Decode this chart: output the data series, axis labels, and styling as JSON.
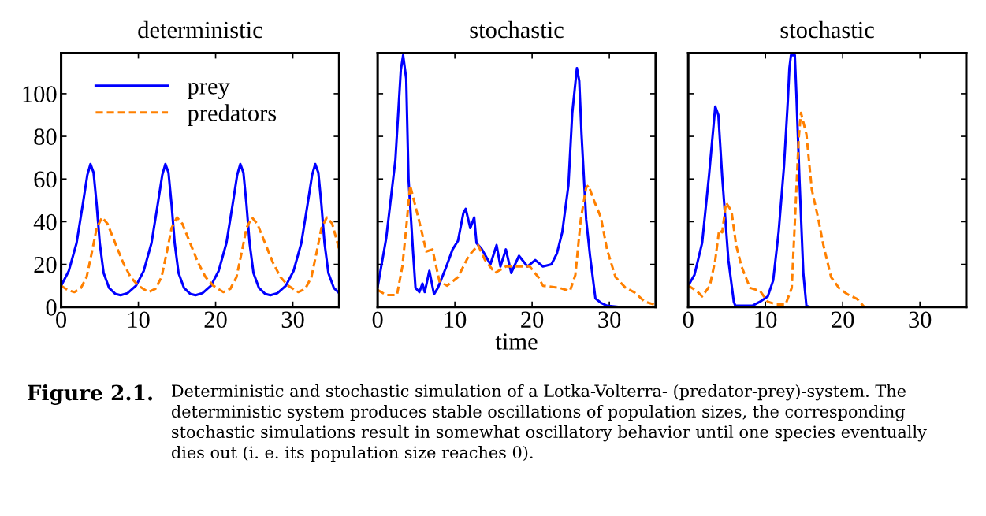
{
  "chart_data": [
    {
      "type": "line",
      "title": "deterministic",
      "xlim": [
        0,
        36
      ],
      "ylim": [
        0,
        119
      ],
      "xticks": [
        0,
        10,
        20,
        30
      ],
      "yticks": [
        0,
        20,
        40,
        60,
        80,
        100
      ],
      "legend": "top",
      "grid": false,
      "annotations": [
        "Figure 2.1.",
        "Deterministic and stochastic simulation of a Lotka-Volterra- (predator-prey)-system. The deterministic system produces stable oscillations of population sizes, the corresponding stochastic simulations result in somewhat oscillatory behavior until one species eventually dies out (i. e. its population size reaches 0)."
      ],
      "series": [
        {
          "name": "prey",
          "color": "#0000ff",
          "line_style": "solid",
          "x": [
            0,
            1,
            2,
            2.8,
            3.4,
            3.8,
            4.2,
            4.6,
            5.0,
            5.5,
            6.2,
            7.0,
            7.7,
            8.6,
            9.7,
            10.7,
            11.7,
            12.5,
            13.1,
            13.5,
            13.9,
            14.3,
            14.7,
            15.2,
            15.9,
            16.7,
            17.4,
            18.3,
            19.4,
            20.4,
            21.4,
            22.2,
            22.8,
            23.2,
            23.6,
            24.0,
            24.4,
            24.9,
            25.6,
            26.4,
            27.1,
            28.0,
            29.1,
            30.1,
            31.1,
            31.9,
            32.5,
            32.9,
            33.3,
            33.7,
            34.1,
            34.6,
            35.3,
            36
          ],
          "values": [
            10,
            17,
            30,
            48,
            62,
            67,
            63,
            48,
            30,
            16,
            9,
            6.2,
            5.5,
            6.5,
            10,
            17,
            30,
            48,
            62,
            67,
            63,
            48,
            30,
            16,
            9,
            6.2,
            5.5,
            6.5,
            10,
            17,
            30,
            48,
            62,
            67,
            63,
            48,
            30,
            16,
            9,
            6.2,
            5.5,
            6.5,
            10,
            17,
            30,
            48,
            62,
            67,
            63,
            48,
            30,
            16,
            9,
            6.5
          ]
        },
        {
          "name": "predators",
          "color": "#ff8000",
          "line_style": "dashed",
          "x": [
            0,
            0.8,
            1.7,
            2.5,
            3.3,
            4.0,
            4.6,
            5.3,
            6.0,
            7.0,
            8.0,
            9.0,
            10.0,
            11.3,
            12.2,
            13.0,
            13.7,
            14.3,
            15.0,
            15.7,
            16.7,
            17.7,
            18.7,
            19.7,
            21.0,
            21.9,
            22.7,
            23.4,
            24.0,
            24.7,
            25.4,
            26.4,
            27.4,
            28.4,
            29.4,
            30.7,
            31.6,
            32.4,
            33.1,
            33.7,
            34.4,
            35.1,
            36
          ],
          "values": [
            10,
            8,
            7,
            8.5,
            14,
            26,
            37,
            42,
            39,
            30,
            21,
            14,
            10,
            7,
            8.5,
            14,
            26,
            37,
            42,
            39,
            30,
            21,
            14,
            10,
            7,
            8.5,
            14,
            26,
            37,
            42,
            39,
            30,
            21,
            14,
            10,
            7,
            8.5,
            14,
            26,
            37,
            42,
            39,
            27
          ]
        }
      ]
    },
    {
      "type": "line",
      "title": "stochastic",
      "xlabel": "time",
      "xlim": [
        0,
        36
      ],
      "ylim": [
        0,
        119
      ],
      "xticks": [
        0,
        10,
        20,
        30
      ],
      "yticks": [
        {
          "value": 0,
          "label": null
        },
        {
          "value": 20,
          "label": null
        },
        {
          "value": 40,
          "label": null
        },
        {
          "value": 60,
          "label": null
        },
        {
          "value": 80,
          "label": null
        },
        {
          "value": 100,
          "label": null
        }
      ],
      "tick_labels": "x",
      "grid": false,
      "series": [
        {
          "color": "#0000ff",
          "line_style": "solid",
          "x": [
            0,
            1.1,
            2.3,
            3.0,
            3.3,
            3.7,
            4.0,
            4.6,
            4.9,
            5.4,
            5.8,
            6.1,
            6.7,
            7.3,
            7.8,
            8.9,
            9.7,
            10.4,
            11.1,
            11.4,
            12.0,
            12.5,
            12.8,
            13.5,
            14.6,
            15.4,
            15.9,
            16.6,
            17.3,
            18.3,
            19.4,
            20.4,
            21.4,
            22.5,
            23.2,
            23.9,
            24.7,
            25.2,
            25.8,
            26.1,
            26.4,
            27.0,
            27.5,
            28.2,
            28.9,
            29.7,
            31.4,
            36
          ],
          "values": [
            9.4,
            32,
            69,
            111,
            118,
            107,
            60,
            25,
            9,
            7,
            11,
            7,
            17,
            6,
            9,
            19,
            27,
            31,
            44,
            46,
            37,
            42,
            30,
            27,
            20,
            29,
            19,
            27,
            16,
            24,
            19,
            22,
            19,
            20,
            25,
            35,
            57,
            91,
            112,
            106,
            81,
            41,
            24,
            4,
            2,
            0.6,
            0,
            0
          ]
        },
        {
          "color": "#ff8000",
          "line_style": "dashed",
          "x": [
            0,
            1.1,
            2.5,
            3.2,
            3.7,
            4.2,
            4.7,
            5.6,
            6.3,
            7.1,
            8.0,
            9.0,
            10.4,
            11.8,
            13.0,
            13.9,
            15.2,
            16.6,
            18.0,
            19.7,
            20.8,
            21.4,
            23.5,
            24.9,
            25.6,
            26.3,
            27.0,
            27.3,
            28.0,
            28.9,
            29.7,
            30.8,
            32.1,
            33.2,
            34.6,
            36
          ],
          "values": [
            8,
            5.6,
            5.6,
            19,
            37,
            57,
            50,
            37,
            26,
            27,
            12,
            10,
            14,
            24,
            29,
            22,
            16,
            19,
            19,
            19,
            14,
            10,
            9,
            7.5,
            15,
            41,
            56,
            57,
            50,
            42,
            27,
            14,
            9,
            7,
            2.5,
            1
          ]
        }
      ]
    },
    {
      "type": "line",
      "title": "stochastic",
      "xlim": [
        0,
        36
      ],
      "ylim": [
        0,
        119
      ],
      "xticks": [
        0,
        10,
        20,
        30
      ],
      "yticks": [
        {
          "value": 0,
          "label": null
        },
        {
          "value": 20,
          "label": null
        },
        {
          "value": 40,
          "label": null
        },
        {
          "value": 60,
          "label": null
        },
        {
          "value": 80,
          "label": null
        },
        {
          "value": 100,
          "label": null
        }
      ],
      "tick_labels": "x",
      "grid": false,
      "series": [
        {
          "color": "#0000ff",
          "line_style": "solid",
          "x": [
            0,
            0.8,
            1.8,
            2.7,
            3.5,
            3.9,
            4.4,
            5.2,
            5.9,
            6.1,
            8.3,
            9.3,
            10.3,
            11.0,
            11.7,
            12.4,
            12.9,
            13.1,
            13.3,
            13.8,
            14.0,
            14.4,
            14.9,
            15.3,
            15.8
          ],
          "values": [
            10,
            15,
            30,
            62,
            94,
            90,
            61,
            22,
            2.5,
            0.6,
            0.6,
            2.5,
            5,
            12.5,
            35,
            66,
            97,
            112,
            118,
            118,
            100,
            60,
            16,
            0.6,
            0
          ]
        },
        {
          "color": "#ff8000",
          "line_style": "dashed",
          "x": [
            0,
            1.1,
            1.8,
            2.8,
            3.5,
            4.0,
            4.4,
            4.9,
            5.6,
            6.2,
            6.9,
            8.0,
            9.3,
            10.3,
            11.4,
            12.6,
            13.4,
            13.9,
            14.3,
            14.6,
            15.3,
            16.0,
            16.8,
            17.5,
            18.5,
            19.5,
            20.6,
            21.9,
            22.8
          ],
          "values": [
            10,
            7.5,
            5,
            10,
            22,
            36,
            35,
            49,
            45,
            29,
            19,
            9,
            7.5,
            2.5,
            1.2,
            1.2,
            9,
            47,
            79,
            91,
            81,
            55,
            42,
            29,
            14,
            9,
            6,
            3.7,
            0
          ]
        }
      ]
    }
  ]
}
